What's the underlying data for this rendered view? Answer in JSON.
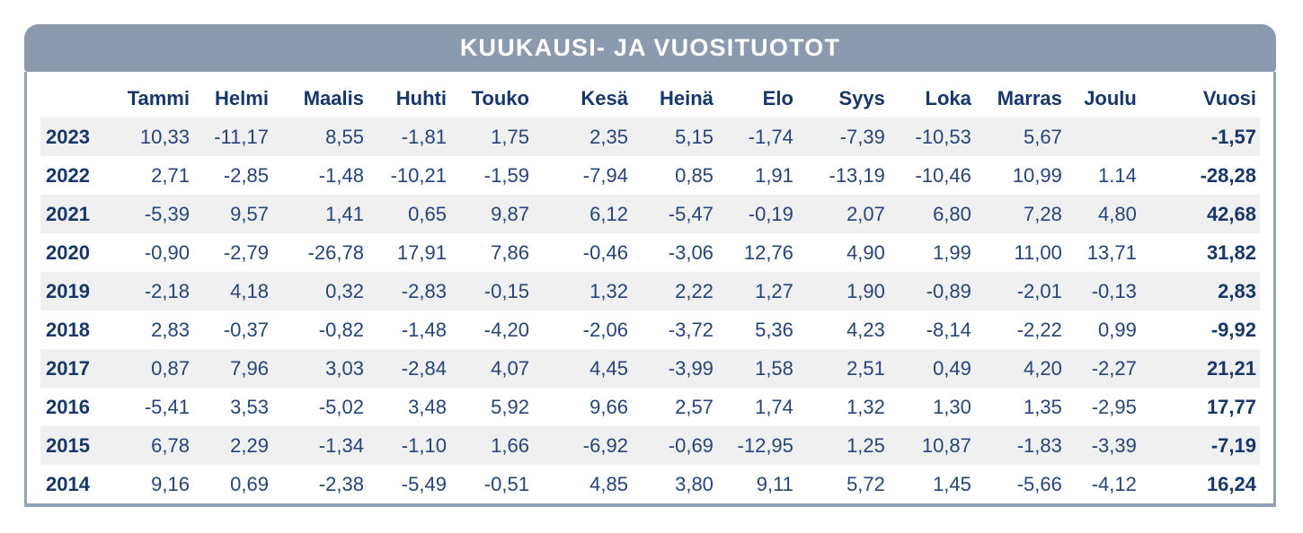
{
  "title": "KUUKAUSI- JA VUOSITUOTOT",
  "chart_data": {
    "type": "table",
    "title": "KUUKAUSI- JA VUOSITUOTOT",
    "columns": [
      "",
      "Tammi",
      "Helmi",
      "Maalis",
      "Huhti",
      "Touko",
      "Kesä",
      "Heinä",
      "Elo",
      "Syys",
      "Loka",
      "Marras",
      "Joulu",
      "Vuosi"
    ],
    "rows": [
      {
        "year": "2023",
        "values": [
          "10,33",
          "-11,17",
          "8,55",
          "-1,81",
          "1,75",
          "2,35",
          "5,15",
          "-1,74",
          "-7,39",
          "-10,53",
          "5,67",
          "",
          "-1,57"
        ]
      },
      {
        "year": "2022",
        "values": [
          "2,71",
          "-2,85",
          "-1,48",
          "-10,21",
          "-1,59",
          "-7,94",
          "0,85",
          "1,91",
          "-13,19",
          "-10,46",
          "10,99",
          "1.14",
          "-28,28"
        ]
      },
      {
        "year": "2021",
        "values": [
          "-5,39",
          "9,57",
          "1,41",
          "0,65",
          "9,87",
          "6,12",
          "-5,47",
          "-0,19",
          "2,07",
          "6,80",
          "7,28",
          "4,80",
          "42,68"
        ]
      },
      {
        "year": "2020",
        "values": [
          "-0,90",
          "-2,79",
          "-26,78",
          "17,91",
          "7,86",
          "-0,46",
          "-3,06",
          "12,76",
          "4,90",
          "1,99",
          "11,00",
          "13,71",
          "31,82"
        ]
      },
      {
        "year": "2019",
        "values": [
          "-2,18",
          "4,18",
          "0,32",
          "-2,83",
          "-0,15",
          "1,32",
          "2,22",
          "1,27",
          "1,90",
          "-0,89",
          "-2,01",
          "-0,13",
          "2,83"
        ]
      },
      {
        "year": "2018",
        "values": [
          "2,83",
          "-0,37",
          "-0,82",
          "-1,48",
          "-4,20",
          "-2,06",
          "-3,72",
          "5,36",
          "4,23",
          "-8,14",
          "-2,22",
          "0,99",
          "-9,92"
        ]
      },
      {
        "year": "2017",
        "values": [
          "0,87",
          "7,96",
          "3,03",
          "-2,84",
          "4,07",
          "4,45",
          "-3,99",
          "1,58",
          "2,51",
          "0,49",
          "4,20",
          "-2,27",
          "21,21"
        ]
      },
      {
        "year": "2016",
        "values": [
          "-5,41",
          "3,53",
          "-5,02",
          "3,48",
          "5,92",
          "9,66",
          "2,57",
          "1,74",
          "1,32",
          "1,30",
          "1,35",
          "-2,95",
          "17,77"
        ]
      },
      {
        "year": "2015",
        "values": [
          "6,78",
          "2,29",
          "-1,34",
          "-1,10",
          "1,66",
          "-6,92",
          "-0,69",
          "-12,95",
          "1,25",
          "10,87",
          "-1,83",
          "-3,39",
          "-7,19"
        ]
      },
      {
        "year": "2014",
        "values": [
          "9,16",
          "0,69",
          "-2,38",
          "-5,49",
          "-0,51",
          "4,85",
          "3,80",
          "9,11",
          "5,72",
          "1,45",
          "-5,66",
          "-4,12",
          "16,24"
        ]
      }
    ],
    "layout_hints": {
      "zebra_striping": true,
      "first_data_row_striped": true,
      "year_column_align": "left",
      "value_columns_align": "right"
    }
  },
  "colors": {
    "header_bg": "#8b9aaf",
    "border": "#93a2b6",
    "text_bold": "#17376b",
    "text_regular": "#26437a",
    "stripe": "#f0f0f1",
    "title_text": "#ffffff"
  }
}
